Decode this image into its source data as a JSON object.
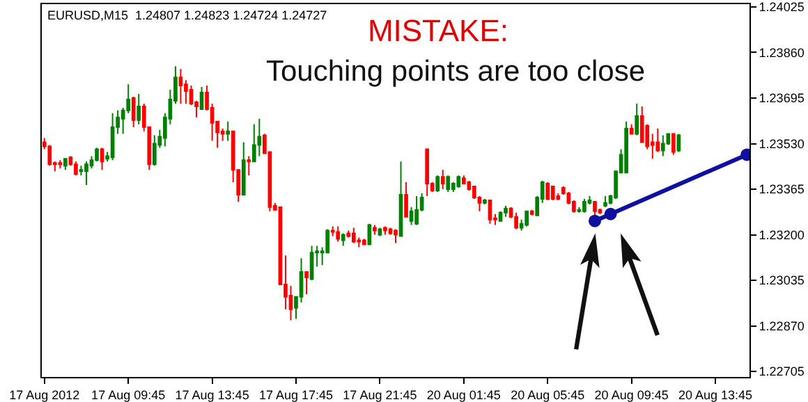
{
  "chart_data": {
    "type": "candlestick",
    "title": "MISTAKE:",
    "subtitle": "Touching points are too close",
    "annotations": [
      "EURUSD,M15  1.24807 1.24823 1.24724 1.24727"
    ],
    "categories": [
      "17 Aug 2012",
      null,
      null,
      null,
      null,
      null,
      null,
      null,
      null,
      null,
      null,
      null,
      null,
      null,
      null,
      null,
      "17 Aug 09:45",
      null,
      null,
      null,
      null,
      null,
      null,
      null,
      null,
      null,
      null,
      null,
      null,
      null,
      null,
      null,
      "17 Aug 13:45",
      null,
      null,
      null,
      null,
      null,
      null,
      null,
      null,
      null,
      null,
      null,
      null,
      null,
      null,
      null,
      "17 Aug 17:45",
      null,
      null,
      null,
      null,
      null,
      null,
      null,
      null,
      null,
      null,
      null,
      null,
      null,
      null,
      null,
      "17 Aug 21:45",
      null,
      null,
      null,
      null,
      null,
      null,
      null,
      null,
      null,
      null,
      null,
      null,
      null,
      null,
      null,
      "20 Aug 01:45",
      null,
      null,
      null,
      null,
      null,
      null,
      null,
      null,
      null,
      null,
      null,
      null,
      null,
      null,
      null,
      "20 Aug 05:45",
      null,
      null,
      null,
      null,
      null,
      null,
      null,
      null,
      null,
      null,
      null,
      null,
      null,
      null,
      null,
      "20 Aug 09:45",
      null,
      null,
      null,
      null,
      null,
      null,
      null,
      null,
      null,
      null,
      null,
      null,
      null,
      null,
      null,
      "20 Aug 13:45",
      null,
      null,
      null,
      null,
      null,
      null
    ],
    "ohlc": [
      [
        1.23535,
        1.2355,
        1.2351,
        1.2352
      ],
      [
        1.2352,
        1.23525,
        1.2345,
        1.23455
      ],
      [
        1.2346,
        1.23465,
        1.2343,
        1.23455
      ],
      [
        1.2346,
        1.2347,
        1.2344,
        1.23455
      ],
      [
        1.2345,
        1.23475,
        1.23435,
        1.23475
      ],
      [
        1.2348,
        1.23485,
        1.2345,
        1.23455
      ],
      [
        1.23455,
        1.23465,
        1.23415,
        1.2342
      ],
      [
        1.2343,
        1.2345,
        1.23415,
        1.23435
      ],
      [
        1.2343,
        1.23465,
        1.2338,
        1.23455
      ],
      [
        1.2345,
        1.23485,
        1.2344,
        1.2347
      ],
      [
        1.2347,
        1.23515,
        1.23465,
        1.2351
      ],
      [
        1.2351,
        1.23515,
        1.23435,
        1.23465
      ],
      [
        1.23475,
        1.235,
        1.23465,
        1.23485
      ],
      [
        1.2348,
        1.2364,
        1.2347,
        1.2359
      ],
      [
        1.2359,
        1.2365,
        1.23565,
        1.23625
      ],
      [
        1.2362,
        1.2366,
        1.23565,
        1.2365
      ],
      [
        1.2365,
        1.23745,
        1.2364,
        1.2369
      ],
      [
        1.23695,
        1.237,
        1.2359,
        1.23615
      ],
      [
        1.23615,
        1.2371,
        1.236,
        1.23665
      ],
      [
        1.23665,
        1.23675,
        1.23575,
        1.2359
      ],
      [
        1.2359,
        1.2359,
        1.23435,
        1.23455
      ],
      [
        1.23455,
        1.2356,
        1.2345,
        1.2353
      ],
      [
        1.23525,
        1.2358,
        1.23515,
        1.23555
      ],
      [
        1.2355,
        1.2364,
        1.2352,
        1.23625
      ],
      [
        1.2362,
        1.23725,
        1.236,
        1.2369
      ],
      [
        1.23685,
        1.2381,
        1.23675,
        1.2377
      ],
      [
        1.2377,
        1.238,
        1.23675,
        1.2374
      ],
      [
        1.23745,
        1.2376,
        1.23675,
        1.2372
      ],
      [
        1.23725,
        1.2374,
        1.2367,
        1.23675
      ],
      [
        1.2368,
        1.23685,
        1.23625,
        1.23665
      ],
      [
        1.23655,
        1.23735,
        1.23655,
        1.23715
      ],
      [
        1.23715,
        1.2374,
        1.2365,
        1.23655
      ],
      [
        1.2366,
        1.23675,
        1.2354,
        1.23605
      ],
      [
        1.2361,
        1.2361,
        1.23515,
        1.2357
      ],
      [
        1.23575,
        1.23585,
        1.2354,
        1.23565
      ],
      [
        1.23565,
        1.2361,
        1.2354,
        1.23575
      ],
      [
        1.23575,
        1.23575,
        1.2339,
        1.23435
      ],
      [
        1.23435,
        1.23435,
        1.2332,
        1.23345
      ],
      [
        1.23345,
        1.23535,
        1.23345,
        1.2347
      ],
      [
        1.2347,
        1.23485,
        1.23415,
        1.23465
      ],
      [
        1.23465,
        1.236,
        1.23465,
        1.23525
      ],
      [
        1.23525,
        1.2362,
        1.23485,
        1.23555
      ],
      [
        1.2356,
        1.23565,
        1.23495,
        1.23495
      ],
      [
        1.235,
        1.235,
        1.23285,
        1.233
      ],
      [
        1.23305,
        1.23315,
        1.2329,
        1.2329
      ],
      [
        1.233,
        1.233,
        1.2302,
        1.2302
      ],
      [
        1.2302,
        1.23125,
        1.2293,
        1.22975
      ],
      [
        1.2298,
        1.23015,
        1.2289,
        1.2293
      ],
      [
        1.22935,
        1.22975,
        1.22895,
        1.22975
      ],
      [
        1.22975,
        1.23115,
        1.22955,
        1.23065
      ],
      [
        1.23065,
        1.23065,
        1.22985,
        1.23045
      ],
      [
        1.2304,
        1.2316,
        1.23035,
        1.23135
      ],
      [
        1.23135,
        1.2316,
        1.23085,
        1.2314
      ],
      [
        1.23135,
        1.23155,
        1.2309,
        1.2314
      ],
      [
        1.23135,
        1.2322,
        1.23135,
        1.23215
      ],
      [
        1.23215,
        1.2323,
        1.23195,
        1.2321
      ],
      [
        1.2321,
        1.2323,
        1.23175,
        1.23185
      ],
      [
        1.2318,
        1.23205,
        1.2316,
        1.232
      ],
      [
        1.23205,
        1.23215,
        1.2319,
        1.23195
      ],
      [
        1.23205,
        1.23225,
        1.2317,
        1.23175
      ],
      [
        1.2318,
        1.2319,
        1.23155,
        1.23175
      ],
      [
        1.2318,
        1.23185,
        1.23165,
        1.23165
      ],
      [
        1.23165,
        1.2324,
        1.23165,
        1.23235
      ],
      [
        1.23225,
        1.23235,
        1.232,
        1.23215
      ],
      [
        1.232,
        1.23225,
        1.23195,
        1.2322
      ],
      [
        1.23225,
        1.2323,
        1.232,
        1.23215
      ],
      [
        1.2322,
        1.23225,
        1.232,
        1.23205
      ],
      [
        1.23215,
        1.2322,
        1.2317,
        1.232
      ],
      [
        1.23195,
        1.23465,
        1.23195,
        1.23345
      ],
      [
        1.23345,
        1.2339,
        1.23265,
        1.23265
      ],
      [
        1.2325,
        1.233,
        1.23235,
        1.23285
      ],
      [
        1.2324,
        1.2334,
        1.23235,
        1.2329
      ],
      [
        1.2329,
        1.2335,
        1.23285,
        1.23335
      ],
      [
        1.2351,
        1.2351,
        1.2334,
        1.23385
      ],
      [
        1.23385,
        1.2339,
        1.23355,
        1.2336
      ],
      [
        1.2336,
        1.23415,
        1.23355,
        1.2341
      ],
      [
        1.2341,
        1.23435,
        1.23365,
        1.23385
      ],
      [
        1.23365,
        1.23415,
        1.23355,
        1.2341
      ],
      [
        1.23365,
        1.2339,
        1.23355,
        1.23385
      ],
      [
        1.23375,
        1.23415,
        1.2337,
        1.2341
      ],
      [
        1.23405,
        1.23415,
        1.23385,
        1.23385
      ],
      [
        1.2339,
        1.23395,
        1.2336,
        1.23365
      ],
      [
        1.23375,
        1.23375,
        1.2333,
        1.23335
      ],
      [
        1.23335,
        1.2334,
        1.23285,
        1.23315
      ],
      [
        1.23315,
        1.2333,
        1.2331,
        1.23325
      ],
      [
        1.23325,
        1.23325,
        1.2324,
        1.23255
      ],
      [
        1.2326,
        1.23275,
        1.23235,
        1.23255
      ],
      [
        1.2325,
        1.23285,
        1.2325,
        1.2328
      ],
      [
        1.2328,
        1.23305,
        1.23265,
        1.23295
      ],
      [
        1.23295,
        1.233,
        1.2326,
        1.23265
      ],
      [
        1.23265,
        1.2328,
        1.2322,
        1.23225
      ],
      [
        1.23225,
        1.23255,
        1.23215,
        1.2324
      ],
      [
        1.23235,
        1.23285,
        1.2323,
        1.23285
      ],
      [
        1.23285,
        1.2329,
        1.2327,
        1.23275
      ],
      [
        1.2327,
        1.2334,
        1.2327,
        1.23335
      ],
      [
        1.2333,
        1.23395,
        1.23315,
        1.2339
      ],
      [
        1.23385,
        1.2339,
        1.23325,
        1.2333
      ],
      [
        1.23375,
        1.23375,
        1.23325,
        1.2333
      ],
      [
        1.2334,
        1.2335,
        1.23325,
        1.2333
      ],
      [
        1.2337,
        1.23375,
        1.23345,
        1.2335
      ],
      [
        1.2335,
        1.23355,
        1.2331,
        1.23315
      ],
      [
        1.2332,
        1.23325,
        1.2328,
        1.23285
      ],
      [
        1.23285,
        1.233,
        1.2328,
        1.2329
      ],
      [
        1.23285,
        1.2333,
        1.2328,
        1.2332
      ],
      [
        1.23315,
        1.2334,
        1.2331,
        1.23325
      ],
      [
        1.2332,
        1.2332,
        1.2327,
        1.23285
      ],
      [
        1.2329,
        1.23295,
        1.23275,
        1.2328
      ],
      [
        1.23305,
        1.2334,
        1.233,
        1.23315
      ],
      [
        1.23315,
        1.23345,
        1.2331,
        1.2334
      ],
      [
        1.23335,
        1.2343,
        1.2333,
        1.2343
      ],
      [
        1.23425,
        1.2351,
        1.23425,
        1.2349
      ],
      [
        1.23425,
        1.2361,
        1.23425,
        1.23585
      ],
      [
        1.23585,
        1.236,
        1.23565,
        1.23565
      ],
      [
        1.23565,
        1.23675,
        1.2356,
        1.2363
      ],
      [
        1.2363,
        1.23665,
        1.23535,
        1.23535
      ],
      [
        1.23595,
        1.236,
        1.2351,
        1.2352
      ],
      [
        1.23535,
        1.23565,
        1.23475,
        1.23525
      ],
      [
        1.23535,
        1.23585,
        1.235,
        1.23505
      ],
      [
        1.23505,
        1.2356,
        1.23485,
        1.2353
      ],
      [
        1.2353,
        1.23565,
        1.23525,
        1.23565
      ],
      [
        1.23565,
        1.23565,
        1.2349,
        1.235
      ],
      [
        1.23505,
        1.23565,
        1.235,
        1.2356
      ],
      null,
      null,
      null,
      null,
      null,
      null,
      null,
      null,
      null,
      null,
      null,
      null,
      null
    ],
    "colors": [
      "#ff0000",
      "#ff0000",
      "#ff0000",
      "#ff0000",
      "#008000",
      "#ff0000",
      "#ff0000",
      "#008000",
      "#008000",
      "#008000",
      "#008000",
      "#ff0000",
      "#008000",
      "#008000",
      "#008000",
      "#008000",
      "#008000",
      "#ff0000",
      "#008000",
      "#ff0000",
      "#ff0000",
      "#008000",
      "#008000",
      "#008000",
      "#008000",
      "#008000",
      "#ff0000",
      "#ff0000",
      "#ff0000",
      "#ff0000",
      "#008000",
      "#ff0000",
      "#ff0000",
      "#ff0000",
      "#ff0000",
      "#008000",
      "#ff0000",
      "#ff0000",
      "#008000",
      "#ff0000",
      "#008000",
      "#008000",
      "#ff0000",
      "#ff0000",
      "#ff0000",
      "#ff0000",
      "#ff0000",
      "#ff0000",
      "#008000",
      "#008000",
      "#ff0000",
      "#008000",
      "#008000",
      "#008000",
      "#008000",
      "#ff0000",
      "#ff0000",
      "#008000",
      "#ff0000",
      "#ff0000",
      "#ff0000",
      "#ff0000",
      "#008000",
      "#ff0000",
      "#008000",
      "#ff0000",
      "#ff0000",
      "#ff0000",
      "#008000",
      "#ff0000",
      "#008000",
      "#008000",
      "#008000",
      "#ff0000",
      "#ff0000",
      "#008000",
      "#ff0000",
      "#008000",
      "#008000",
      "#008000",
      "#ff0000",
      "#ff0000",
      "#ff0000",
      "#ff0000",
      "#008000",
      "#ff0000",
      "#ff0000",
      "#008000",
      "#008000",
      "#ff0000",
      "#ff0000",
      "#008000",
      "#008000",
      "#ff0000",
      "#008000",
      "#008000",
      "#ff0000",
      "#ff0000",
      "#ff0000",
      "#ff0000",
      "#ff0000",
      "#ff0000",
      "#008000",
      "#008000",
      "#008000",
      "#ff0000",
      "#ff0000",
      "#008000",
      "#008000",
      "#008000",
      "#008000",
      "#008000",
      "#ff0000",
      "#008000",
      "#ff0000",
      "#ff0000",
      "#ff0000",
      "#ff0000",
      "#008000",
      "#008000",
      "#ff0000",
      "#008000",
      null,
      null,
      null,
      null,
      null,
      null,
      null,
      null,
      null,
      null,
      null,
      null,
      null
    ],
    "series": [
      {
        "type": "line",
        "color": "#1010a0",
        "marker": "circle",
        "line_style": "solid",
        "values": [
          null,
          null,
          null,
          null,
          null,
          null,
          null,
          null,
          null,
          null,
          null,
          null,
          null,
          null,
          null,
          null,
          null,
          null,
          null,
          null,
          null,
          null,
          null,
          null,
          null,
          null,
          null,
          null,
          null,
          null,
          null,
          null,
          null,
          null,
          null,
          null,
          null,
          null,
          null,
          null,
          null,
          null,
          null,
          null,
          null,
          null,
          null,
          null,
          null,
          null,
          null,
          null,
          null,
          null,
          null,
          null,
          null,
          null,
          null,
          null,
          null,
          null,
          null,
          null,
          null,
          null,
          null,
          null,
          null,
          null,
          null,
          null,
          null,
          null,
          null,
          null,
          null,
          null,
          null,
          null,
          null,
          null,
          null,
          null,
          null,
          null,
          null,
          null,
          null,
          null,
          null,
          null,
          null,
          null,
          null,
          null,
          null,
          null,
          null,
          null,
          null,
          null,
          null,
          null,
          null,
          1.2325,
          null,
          null,
          1.23275,
          null,
          null,
          null,
          null,
          null,
          null,
          null,
          null,
          null,
          null,
          null,
          null,
          null,
          null,
          null,
          null,
          null,
          null,
          null,
          null,
          null,
          null,
          null,
          null,
          null,
          1.2349
        ]
      }
    ],
    "ylim": [
      1.22685,
      1.24035
    ],
    "yticks": [
      1.24025,
      {
        "value": 1.2386,
        "label": "1.23860"
      },
      1.23695,
      {
        "value": 1.2353,
        "label": "1.23530"
      },
      1.23365,
      {
        "value": 1.232,
        "label": "1.23200"
      },
      1.23035,
      {
        "value": 1.2287,
        "label": "1.22870"
      },
      1.22705
    ],
    "grid": false
  }
}
